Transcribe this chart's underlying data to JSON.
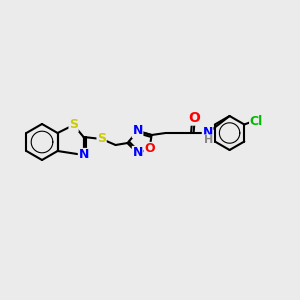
{
  "bg_color": "#ebebeb",
  "bond_color": "#000000",
  "atom_colors": {
    "N": "#0000ff",
    "O": "#ff0000",
    "S": "#cccc00",
    "Cl": "#00bb00",
    "H": "#888888"
  },
  "bond_width": 1.5,
  "font_size": 9
}
